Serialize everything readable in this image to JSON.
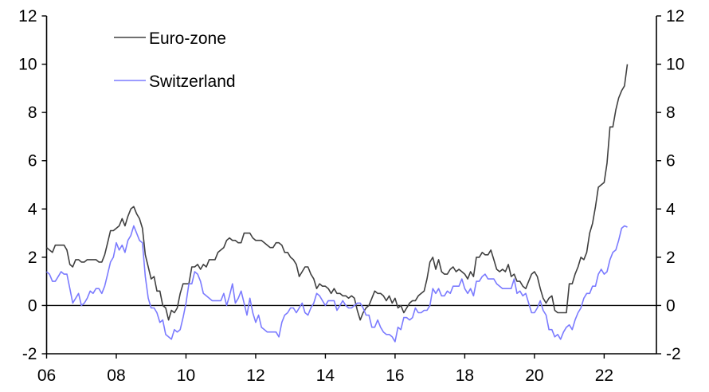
{
  "chart_data": {
    "type": "line",
    "title": "",
    "xlabel": "",
    "ylabel": "",
    "x_start": "2006-01",
    "frequency": "monthly",
    "xlim": [
      2006,
      2023.5
    ],
    "ylim": [
      -2,
      12
    ],
    "yticks": [
      -2,
      0,
      2,
      4,
      6,
      8,
      10,
      12
    ],
    "xticks": [
      2006,
      2008,
      2010,
      2012,
      2014,
      2016,
      2018,
      2020,
      2022
    ],
    "xtick_labels": [
      "06",
      "08",
      "10",
      "12",
      "14",
      "16",
      "18",
      "20",
      "22"
    ],
    "ytick_labels": [
      "-2",
      "0",
      "2",
      "4",
      "6",
      "8",
      "10",
      "12"
    ],
    "grid": false,
    "dual_axis": true,
    "zero_line": true,
    "legend_position": "top-left",
    "series": [
      {
        "name": "Euro-zone",
        "color": "#404040",
        "values": [
          2.4,
          2.3,
          2.2,
          2.5,
          2.5,
          2.5,
          2.5,
          2.3,
          1.7,
          1.6,
          1.9,
          1.9,
          1.8,
          1.8,
          1.9,
          1.9,
          1.9,
          1.9,
          1.8,
          1.8,
          2.1,
          2.6,
          3.1,
          3.1,
          3.2,
          3.3,
          3.6,
          3.3,
          3.7,
          4.0,
          4.1,
          3.8,
          3.6,
          3.2,
          2.1,
          1.6,
          1.1,
          1.2,
          0.6,
          0.6,
          0.0,
          -0.1,
          -0.6,
          -0.2,
          -0.3,
          -0.1,
          0.5,
          0.9,
          0.9,
          0.9,
          1.6,
          1.6,
          1.7,
          1.5,
          1.7,
          1.6,
          1.9,
          1.9,
          1.9,
          2.2,
          2.3,
          2.4,
          2.7,
          2.8,
          2.7,
          2.7,
          2.6,
          2.6,
          3.0,
          3.0,
          3.0,
          2.8,
          2.7,
          2.7,
          2.7,
          2.6,
          2.5,
          2.4,
          2.4,
          2.6,
          2.6,
          2.5,
          2.2,
          2.2,
          2.0,
          1.9,
          1.7,
          1.2,
          1.4,
          1.6,
          1.6,
          1.3,
          1.1,
          0.7,
          0.9,
          0.8,
          0.8,
          0.7,
          0.5,
          0.7,
          0.5,
          0.5,
          0.4,
          0.4,
          0.3,
          0.4,
          0.3,
          -0.2,
          -0.6,
          -0.3,
          -0.1,
          0.0,
          0.3,
          0.6,
          0.5,
          0.5,
          0.4,
          0.2,
          0.4,
          0.1,
          0.3,
          -0.1,
          0.0,
          -0.3,
          -0.1,
          0.1,
          0.2,
          0.2,
          0.4,
          0.5,
          0.6,
          1.1,
          1.8,
          2.0,
          1.5,
          1.9,
          1.4,
          1.3,
          1.3,
          1.5,
          1.6,
          1.4,
          1.5,
          1.4,
          1.3,
          1.1,
          1.4,
          1.2,
          2.0,
          2.0,
          2.2,
          2.1,
          2.1,
          2.3,
          1.9,
          1.5,
          1.4,
          1.5,
          1.4,
          1.7,
          1.2,
          1.3,
          1.0,
          1.0,
          0.8,
          0.7,
          1.0,
          1.3,
          1.4,
          1.2,
          0.7,
          0.3,
          0.1,
          0.3,
          0.4,
          -0.2,
          -0.3,
          -0.3,
          -0.3,
          -0.3,
          0.9,
          0.9,
          1.3,
          1.6,
          2.0,
          1.9,
          2.2,
          3.0,
          3.4,
          4.1,
          4.9,
          5.0,
          5.1,
          5.9,
          7.4,
          7.4,
          8.1,
          8.6,
          8.9,
          9.1,
          10.0
        ]
      },
      {
        "name": "Switzerland",
        "color": "#7b7bff",
        "values": [
          1.4,
          1.3,
          1.0,
          1.0,
          1.2,
          1.4,
          1.3,
          1.3,
          0.7,
          0.1,
          0.3,
          0.5,
          0.0,
          0.1,
          0.3,
          0.6,
          0.5,
          0.7,
          0.7,
          0.5,
          0.8,
          1.3,
          1.8,
          2.0,
          2.6,
          2.3,
          2.5,
          2.2,
          2.7,
          2.9,
          3.3,
          3.0,
          2.7,
          2.6,
          1.2,
          0.3,
          -0.1,
          -0.1,
          -0.3,
          -0.7,
          -0.6,
          -1.2,
          -1.3,
          -1.4,
          -1.0,
          -1.1,
          -1.0,
          -0.5,
          0.1,
          0.9,
          0.9,
          1.4,
          1.3,
          1.0,
          0.5,
          0.4,
          0.3,
          0.2,
          0.2,
          0.2,
          0.2,
          0.5,
          0.0,
          0.4,
          0.9,
          0.1,
          0.3,
          0.6,
          0.1,
          -0.4,
          0.3,
          -0.3,
          -0.7,
          -0.4,
          -0.9,
          -1.0,
          -1.1,
          -1.1,
          -1.1,
          -1.1,
          -1.3,
          -0.7,
          -0.4,
          -0.3,
          -0.1,
          -0.1,
          -0.3,
          -0.1,
          0.1,
          -0.3,
          -0.4,
          -0.1,
          0.1,
          0.5,
          0.4,
          0.2,
          0.0,
          0.2,
          0.2,
          0.2,
          -0.2,
          0.0,
          0.2,
          0.0,
          -0.1,
          -0.1,
          0.0,
          0.1,
          0.1,
          -0.1,
          -0.4,
          -0.4,
          -0.9,
          -0.9,
          -0.6,
          -0.9,
          -1.1,
          -1.2,
          -1.2,
          -1.3,
          -1.5,
          -0.9,
          -1.0,
          -0.5,
          -0.5,
          -0.6,
          -0.5,
          -0.1,
          -0.3,
          -0.3,
          -0.2,
          -0.2,
          0.0,
          0.7,
          0.5,
          0.7,
          0.4,
          0.4,
          0.6,
          0.5,
          0.8,
          0.8,
          0.8,
          1.1,
          0.7,
          0.5,
          0.7,
          0.4,
          1.0,
          1.0,
          1.2,
          1.3,
          1.1,
          1.1,
          1.1,
          0.9,
          0.8,
          0.7,
          0.7,
          0.7,
          0.7,
          1.1,
          0.5,
          0.6,
          0.4,
          0.5,
          0.1,
          -0.3,
          -0.3,
          -0.1,
          0.2,
          -0.2,
          -0.4,
          -1.0,
          -1.0,
          -1.3,
          -1.2,
          -1.4,
          -1.1,
          -0.9,
          -0.8,
          -1.0,
          -0.6,
          -0.3,
          -0.1,
          0.3,
          0.5,
          0.5,
          0.8,
          0.8,
          1.3,
          1.5,
          1.3,
          1.4,
          1.9,
          2.2,
          2.3,
          2.7,
          3.2,
          3.3,
          3.25
        ]
      }
    ]
  }
}
